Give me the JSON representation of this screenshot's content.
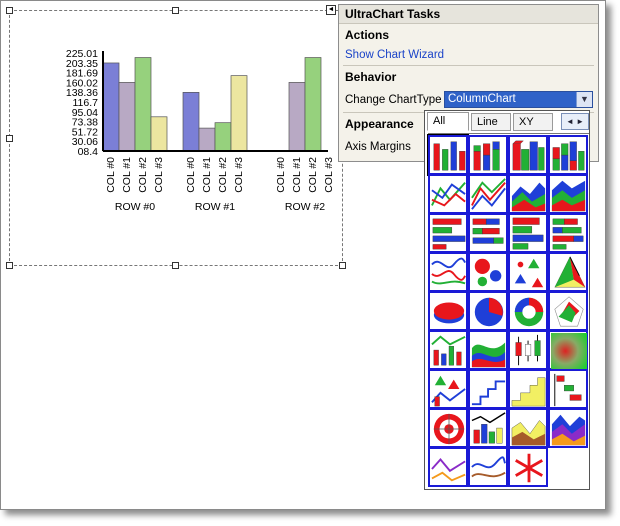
{
  "tasks": {
    "title": "UltraChart Tasks",
    "actions_header": "Actions",
    "wizard_link": "Show Chart Wizard",
    "behavior_header": "Behavior",
    "change_type_label": "Change ChartType",
    "change_type_value": "ColumnChart",
    "appearance_header": "Appearance",
    "axis_margins_label": "Axis Margins"
  },
  "gallery": {
    "tabs": [
      "All",
      "Line",
      "XY"
    ],
    "scroll_label": "◄ ►",
    "icons": [
      "column-chart-icon",
      "stacked-column-chart-icon",
      "column-3d-chart-icon",
      "stacked-column-3d-chart-icon",
      "line-chart-icon",
      "stacked-line-chart-icon",
      "area-3d-chart-icon",
      "stacked-area-3d-chart-icon",
      "bar-chart-icon",
      "stacked-bar-chart-icon",
      "bar-3d-chart-icon",
      "stacked-bar-3d-chart-icon",
      "spline-chart-icon",
      "bubble-chart-icon",
      "scatter-chart-icon",
      "pyramid-3d-chart-icon",
      "pie-3d-chart-icon",
      "pie-chart-icon",
      "doughnut-chart-icon",
      "radar-chart-icon",
      "composite-line-chart-icon",
      "spline-area-chart-icon",
      "candle-chart-icon",
      "heatmap-chart-icon",
      "combo-chart-icon",
      "step-line-chart-icon",
      "step-area-chart-icon",
      "gantt-chart-icon",
      "polar-chart-icon",
      "column-line-chart-icon",
      "area-chart-icon",
      "stacked-area-chart-icon",
      "line-3d-chart-icon",
      "spline-3d-chart-icon",
      "funnel-chart-icon"
    ]
  },
  "chart_data": {
    "type": "bar",
    "title": "",
    "categories": [
      "ROW #0",
      "ROW #1",
      "ROW #2"
    ],
    "series": [
      {
        "name": "COL #0",
        "values": [
          203,
          138,
          null
        ]
      },
      {
        "name": "COL #1",
        "values": [
          160,
          59,
          160
        ]
      },
      {
        "name": "COL #2",
        "values": [
          215,
          71,
          215
        ]
      },
      {
        "name": "COL #3",
        "values": [
          84,
          175,
          null
        ]
      }
    ],
    "series_colors": [
      "#7b7fd6",
      "#b8a9c4",
      "#96d17d",
      "#ece6a0"
    ],
    "y_ticks": [
      "225.01",
      "203.35",
      "181.69",
      "160.02",
      "138.36",
      "116.7",
      "95.04",
      "73.38",
      "51.72",
      "30.06",
      "08.4"
    ],
    "ylim": [
      8.4,
      225.01
    ],
    "xlabel": "",
    "ylabel": "",
    "grid": false
  }
}
